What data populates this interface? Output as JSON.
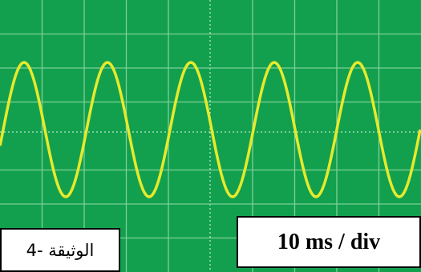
{
  "time_base": "10 ms / div",
  "document_label": "الوثيقة -4"
}
